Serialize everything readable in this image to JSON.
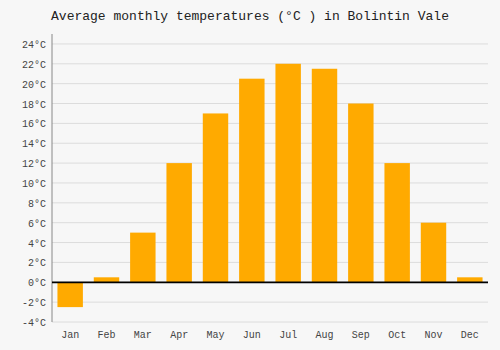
{
  "chart_data": {
    "type": "bar",
    "title": "Average monthly temperatures (°C ) in Bolintin Vale",
    "categories": [
      "Jan",
      "Feb",
      "Mar",
      "Apr",
      "May",
      "Jun",
      "Jul",
      "Aug",
      "Sep",
      "Oct",
      "Nov",
      "Dec"
    ],
    "values": [
      -2.5,
      0.5,
      5.0,
      12.0,
      17.0,
      20.5,
      22.0,
      21.5,
      18.0,
      12.0,
      6.0,
      0.5
    ],
    "color": "#FFAA00",
    "ylim": [
      -4,
      25
    ],
    "yticks": [
      {
        "value": -4,
        "label": "-4°C"
      },
      {
        "value": -2,
        "label": "-2°C"
      },
      {
        "value": 0,
        "label": "0°C"
      },
      {
        "value": 2,
        "label": "2°C"
      },
      {
        "value": 4,
        "label": "4°C"
      },
      {
        "value": 6,
        "label": "6°C"
      },
      {
        "value": 8,
        "label": "8°C"
      },
      {
        "value": 10,
        "label": "10°C"
      },
      {
        "value": 12,
        "label": "12°C"
      },
      {
        "value": 14,
        "label": "14°C"
      },
      {
        "value": 16,
        "label": "16°C"
      },
      {
        "value": 18,
        "label": "18°C"
      },
      {
        "value": 20,
        "label": "20°C"
      },
      {
        "value": 22,
        "label": "22°C"
      },
      {
        "value": 24,
        "label": "24°C"
      }
    ],
    "grid": true
  }
}
